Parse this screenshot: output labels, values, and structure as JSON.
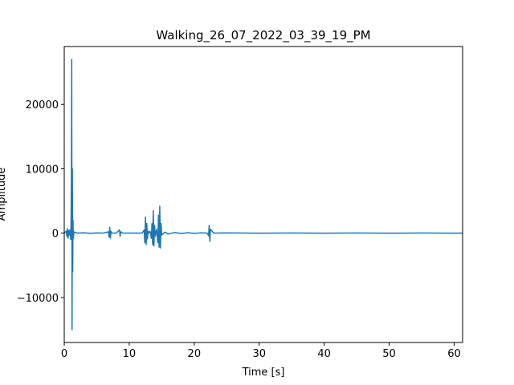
{
  "chart_data": {
    "type": "line",
    "title": "Walking_26_07_2022_03_39_19_PM",
    "xlabel": "Time [s]",
    "ylabel": "Amplitude",
    "xlim": [
      0,
      61.3
    ],
    "ylim": [
      -17000,
      29000
    ],
    "x_ticks": [
      0,
      10,
      20,
      30,
      40,
      50,
      60
    ],
    "x_tick_labels": [
      "0",
      "10",
      "20",
      "30",
      "40",
      "50",
      "60"
    ],
    "y_ticks": [
      -10000,
      0,
      10000,
      20000
    ],
    "y_tick_labels": [
      "−10000",
      "0",
      "10000",
      "20000"
    ],
    "grid": false,
    "line_color": "#1f77b4",
    "series": [
      {
        "name": "",
        "x": [
          0,
          0.3,
          0.4,
          0.5,
          0.6,
          0.7,
          0.8,
          0.9,
          1.0,
          1.05,
          1.1,
          1.15,
          1.2,
          1.25,
          1.3,
          1.35,
          1.4,
          1.5,
          2,
          3,
          4,
          5,
          6,
          6.8,
          6.9,
          7.0,
          7.1,
          7.2,
          7.3,
          8,
          8.5,
          8.6,
          8.7,
          9,
          10,
          11,
          12,
          12.3,
          12.4,
          12.5,
          12.6,
          12.7,
          12.8,
          12.9,
          13,
          13.2,
          13.4,
          13.5,
          13.6,
          13.7,
          13.8,
          13.9,
          14,
          14.2,
          14.4,
          14.5,
          14.6,
          14.7,
          14.8,
          14.9,
          15,
          15.5,
          16,
          17,
          18,
          19,
          20,
          21,
          22,
          22.2,
          22.3,
          22.4,
          22.5,
          23,
          25,
          30,
          35,
          40,
          45,
          50,
          55,
          60,
          61.3
        ],
        "y": [
          0,
          300,
          -500,
          700,
          -800,
          400,
          -300,
          500,
          -1000,
          2000,
          8000,
          27000,
          -15000,
          10000,
          -6000,
          2000,
          -800,
          200,
          0,
          50,
          -50,
          30,
          0,
          200,
          -600,
          900,
          -800,
          300,
          0,
          0,
          500,
          -500,
          200,
          0,
          0,
          0,
          0,
          500,
          -1500,
          2500,
          -1800,
          1500,
          -900,
          300,
          0,
          300,
          -800,
          1500,
          -1800,
          3500,
          -2000,
          1200,
          -500,
          600,
          -1500,
          2800,
          -2200,
          4200,
          -2300,
          1500,
          -300,
          150,
          -150,
          100,
          -80,
          60,
          -50,
          40,
          0,
          -400,
          1200,
          -1300,
          600,
          0,
          30,
          -20,
          20,
          -20,
          20,
          -20,
          20,
          -20,
          0
        ]
      }
    ]
  }
}
